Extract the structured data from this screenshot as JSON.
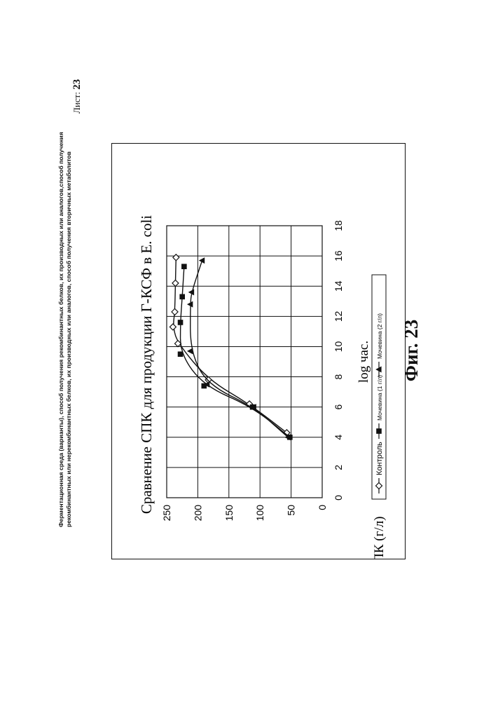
{
  "header": {
    "line1": "Ферментационная среда (варианты), способ получения рекомбинантных белков, их производных или аналогов,способ получения",
    "line2": "рекомбинантных или нерекомбинантных белков, их производных или аналогов, способ получения вторичных метаболитов",
    "sheet_label": "Лист:",
    "sheet_number": "23"
  },
  "figure_caption": "Фиг. 23",
  "chart_data": {
    "type": "line",
    "title": "Сравнение СПК для продукции Г-КСФ в E. coli",
    "xlabel": "log час.",
    "ylabel": "СПК (г/л)",
    "xlim": [
      0,
      18
    ],
    "ylim": [
      0,
      250
    ],
    "x_ticks": [
      "0",
      "2",
      "4",
      "6",
      "8",
      "10",
      "12",
      "14",
      "16",
      "18"
    ],
    "y_ticks": [
      "0",
      "50",
      "100",
      "150",
      "200",
      "250"
    ],
    "grid": true,
    "legend_position": "bottom",
    "series": [
      {
        "name": "Контроль",
        "marker": "diamond-open",
        "color": "#111111",
        "points": [
          [
            4.3,
            57
          ],
          [
            6.2,
            117
          ],
          [
            7.8,
            183
          ],
          [
            10.2,
            232
          ],
          [
            11.3,
            240
          ],
          [
            12.3,
            237
          ],
          [
            14.2,
            236
          ],
          [
            15.9,
            235
          ]
        ]
      },
      {
        "name": "Мочевина (1 г/л)",
        "marker": "square-filled",
        "color": "#111111",
        "points": [
          [
            4.0,
            52
          ],
          [
            6.0,
            112
          ],
          [
            7.4,
            190
          ],
          [
            9.5,
            228
          ],
          [
            11.6,
            228
          ],
          [
            13.3,
            225
          ],
          [
            15.3,
            222
          ]
        ]
      },
      {
        "name": "Мочевина (2 г/л)",
        "marker": "triangle-filled",
        "color": "#111111",
        "points": [
          [
            4.0,
            55
          ],
          [
            6.0,
            110
          ],
          [
            7.5,
            185
          ],
          [
            9.7,
            212
          ],
          [
            12.8,
            212
          ],
          [
            13.6,
            210
          ],
          [
            15.7,
            193
          ]
        ]
      }
    ]
  }
}
